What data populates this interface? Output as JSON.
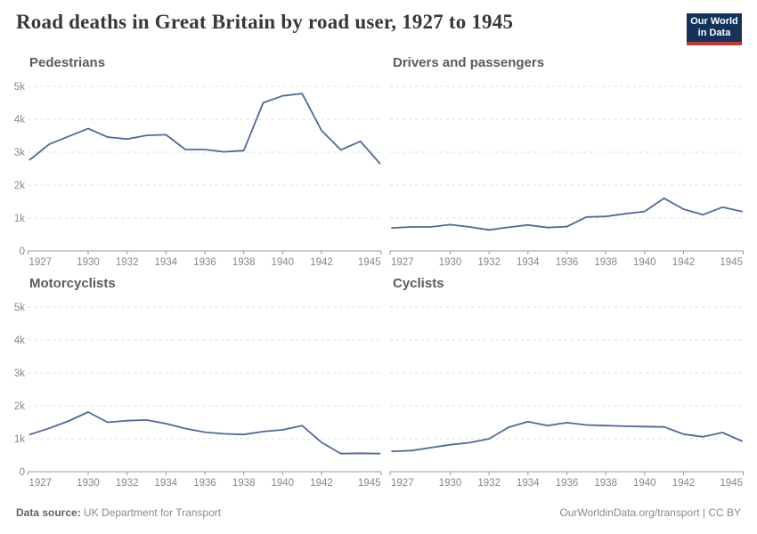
{
  "header": {
    "title": "Road deaths in Great Britain by road user, 1927 to 1945",
    "logo": {
      "line1": "Our World",
      "line2": "in Data"
    }
  },
  "chart_data": {
    "type": "line",
    "title": "Road deaths in Great Britain by road user, 1927 to 1945",
    "layout": "2x2 small multiples, shared axes",
    "x": [
      1927,
      1928,
      1929,
      1930,
      1931,
      1932,
      1933,
      1934,
      1935,
      1936,
      1937,
      1938,
      1939,
      1940,
      1941,
      1942,
      1943,
      1944,
      1945
    ],
    "x_tick_labels": [
      "1927",
      "1930",
      "1932",
      "1934",
      "1936",
      "1938",
      "1940",
      "1942",
      "1945"
    ],
    "y_tick_labels": [
      "0",
      "1k",
      "2k",
      "3k",
      "4k",
      "5k"
    ],
    "xlabel": "",
    "ylabel": "",
    "ylim": [
      0,
      5000
    ],
    "grid": "horizontal dashed gridlines",
    "legend": "none",
    "series": [
      {
        "name": "Pedestrians",
        "values": [
          2770,
          3240,
          3480,
          3720,
          3460,
          3400,
          3510,
          3530,
          3080,
          3080,
          3010,
          3050,
          4500,
          4710,
          4780,
          3660,
          3070,
          3330,
          2660
        ]
      },
      {
        "name": "Drivers and passengers",
        "values": [
          700,
          730,
          730,
          800,
          730,
          640,
          720,
          790,
          710,
          740,
          1030,
          1050,
          1130,
          1200,
          1600,
          1270,
          1100,
          1330,
          1200
        ]
      },
      {
        "name": "Motorcyclists",
        "values": [
          1130,
          1320,
          1540,
          1810,
          1500,
          1550,
          1570,
          1460,
          1310,
          1200,
          1150,
          1130,
          1220,
          1270,
          1400,
          890,
          550,
          560,
          550
        ]
      },
      {
        "name": "Cyclists",
        "values": [
          620,
          640,
          730,
          820,
          880,
          1000,
          1350,
          1520,
          1400,
          1490,
          1420,
          1400,
          1380,
          1370,
          1360,
          1140,
          1060,
          1190,
          930
        ]
      }
    ]
  },
  "footer": {
    "source_label": "Data source:",
    "source_value": " UK Department for Transport",
    "credit": "OurWorldinData.org/transport | CC BY"
  },
  "colors": {
    "line": "#4c6a9c",
    "grid": "#dcdcdc",
    "axis": "#999999",
    "tick_label": "#878787",
    "panel_title": "#5b5b5b",
    "page_title": "#383838",
    "logo_bg": "#14335a",
    "logo_red": "#bf3a32"
  }
}
